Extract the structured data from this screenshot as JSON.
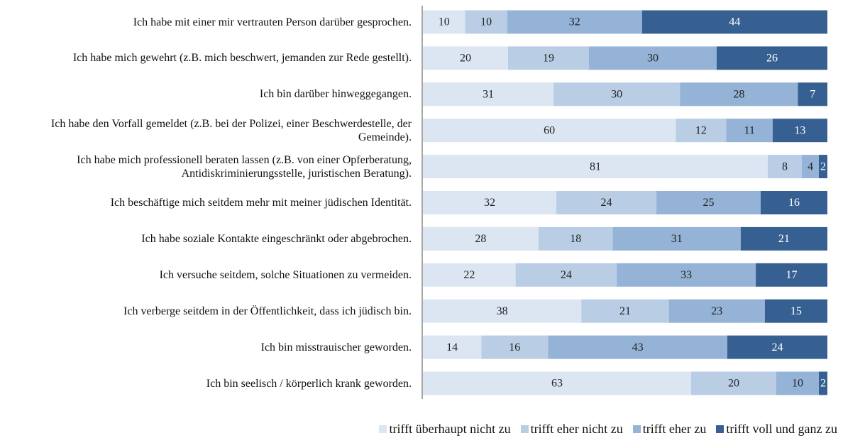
{
  "chart_data": {
    "type": "stacked-barh",
    "categories": [
      "Ich habe mit einer mir vertrauten Person darüber gesprochen.",
      "Ich habe mich gewehrt (z.B. mich beschwert, jemanden zur Rede gestellt).",
      "Ich bin darüber hinweggegangen.",
      "Ich habe den Vorfall gemeldet (z.B. bei der Polizei, einer Beschwerdestelle, der Gemeinde).",
      "Ich habe mich professionell beraten lassen (z.B. von einer Opferberatung, Antidiskriminierungsstelle, juristischen Beratung).",
      "Ich beschäftige mich seitdem mehr mit meiner jüdischen Identität.",
      "Ich habe soziale Kontakte eingeschränkt oder abgebrochen.",
      "Ich versuche seitdem, solche Situationen zu vermeiden.",
      "Ich verberge seitdem in der Öffentlichkeit, dass ich jüdisch bin.",
      "Ich bin misstrauischer geworden.",
      "Ich bin seelisch / körperlich krank geworden."
    ],
    "series": [
      {
        "name": "trifft überhaupt nicht zu",
        "color": "#dce6f2",
        "values": [
          10,
          20,
          31,
          60,
          81,
          32,
          28,
          22,
          38,
          14,
          63
        ]
      },
      {
        "name": "trifft eher nicht zu",
        "color": "#b9cde5",
        "values": [
          10,
          19,
          30,
          12,
          8,
          24,
          18,
          24,
          21,
          16,
          20
        ]
      },
      {
        "name": "trifft eher zu",
        "color": "#95b3d7",
        "values": [
          32,
          30,
          28,
          11,
          4,
          25,
          31,
          33,
          23,
          43,
          10
        ]
      },
      {
        "name": "trifft voll und ganz zu",
        "color": "#366092",
        "values": [
          44,
          26,
          7,
          13,
          2,
          16,
          21,
          17,
          15,
          24,
          2
        ]
      }
    ],
    "legend": "bottom"
  }
}
